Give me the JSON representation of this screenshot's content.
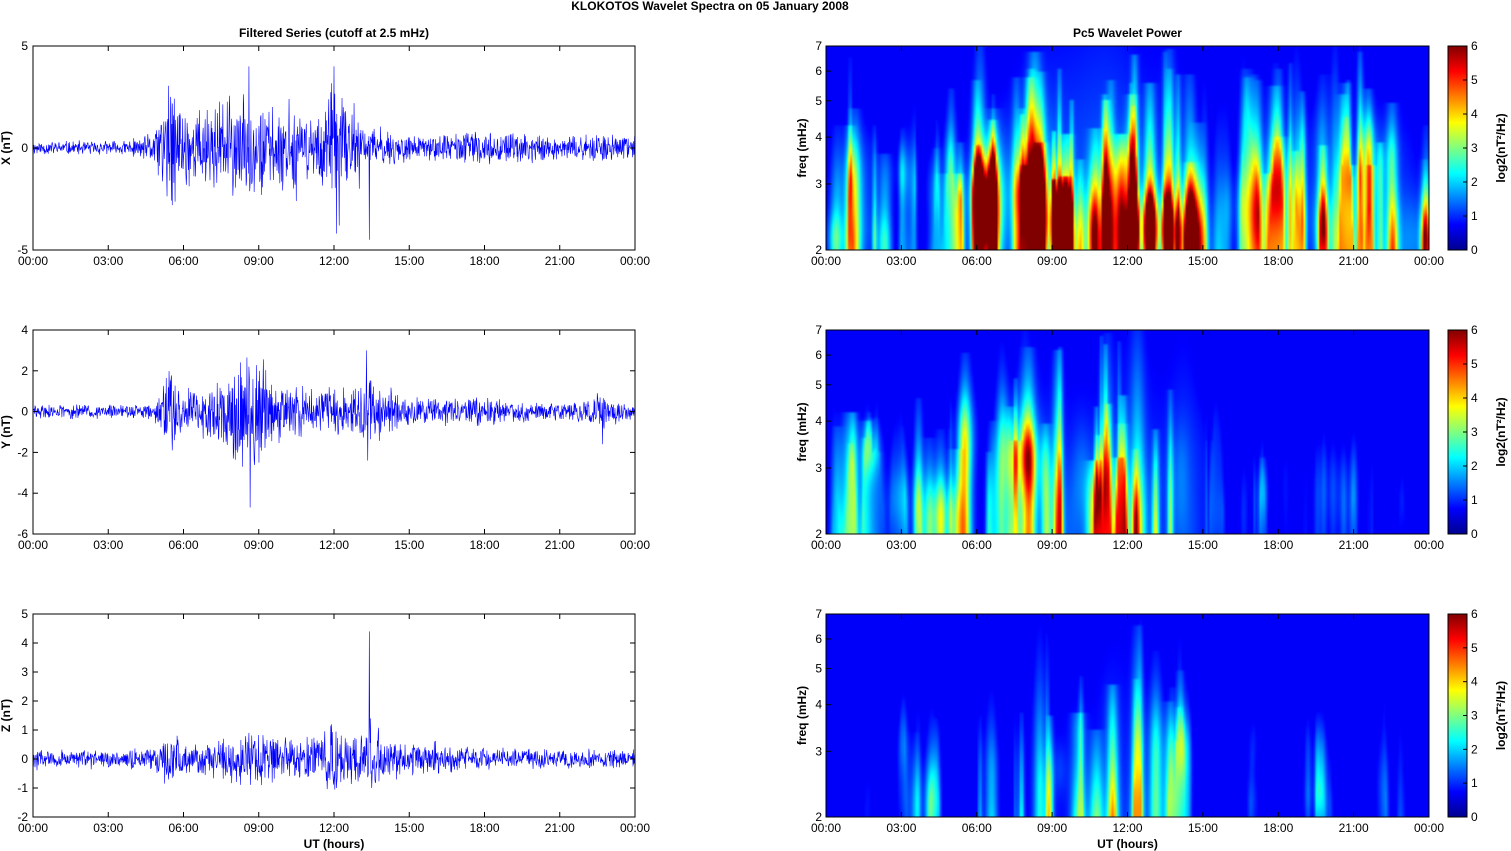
{
  "figure_title": "KLOKOTOS Wavelet Spectra on 05 January   2008",
  "colors": {
    "trace": "#0000ff",
    "axes": "#000000",
    "background": "#ffffff"
  },
  "chart_data": [
    {
      "type": "line",
      "id": "x",
      "title": "Filtered Series (cutoff at 2.5 mHz)",
      "xlabel": "",
      "ylabel": "X (nT)",
      "xlim": [
        "00:00",
        "24:00"
      ],
      "ylim": [
        -5,
        5
      ],
      "yticks": [
        -5,
        0,
        5
      ],
      "xticks": [
        "00:00",
        "03:00",
        "06:00",
        "09:00",
        "12:00",
        "15:00",
        "18:00",
        "21:00",
        "00:00"
      ],
      "series": [
        {
          "values": "high-rate filtered magnetometer trace, peaks near 4 nT at 08:30 and 12:00, minimum near -4.5 nT at 13:30"
        }
      ]
    },
    {
      "type": "line",
      "id": "y",
      "title": "",
      "xlabel": "",
      "ylabel": "Y (nT)",
      "xlim": [
        "00:00",
        "24:00"
      ],
      "ylim": [
        -6,
        4
      ],
      "yticks": [
        -6,
        -4,
        -2,
        0,
        2,
        4
      ],
      "xticks": [
        "00:00",
        "03:00",
        "06:00",
        "09:00",
        "12:00",
        "15:00",
        "18:00",
        "21:00",
        "00:00"
      ],
      "series": [
        {
          "values": "high-rate filtered trace, max near 3 nT at 13:20, min near -4.7 nT at 08:40"
        }
      ]
    },
    {
      "type": "line",
      "id": "z",
      "title": "",
      "xlabel": "UT (hours)",
      "ylabel": "Z (nT)",
      "xlim": [
        "00:00",
        "24:00"
      ],
      "ylim": [
        -2,
        5
      ],
      "yticks": [
        -2,
        -1,
        0,
        1,
        2,
        3,
        4,
        5
      ],
      "xticks": [
        "00:00",
        "03:00",
        "06:00",
        "09:00",
        "12:00",
        "15:00",
        "18:00",
        "21:00",
        "00:00"
      ],
      "series": [
        {
          "values": "high-rate filtered trace, spike near 4.4 nT at 13:20"
        }
      ]
    },
    {
      "type": "heatmap",
      "id": "wx",
      "title": "Pc5 Wavelet Power",
      "xlabel": "",
      "ylabel": "freq (mHz)",
      "xlim": [
        "00:00",
        "24:00"
      ],
      "ylim": [
        2,
        7
      ],
      "yscale": "log",
      "yticks": [
        2,
        3,
        4,
        5,
        6,
        7
      ],
      "xticks": [
        "00:00",
        "03:00",
        "06:00",
        "09:00",
        "12:00",
        "15:00",
        "18:00",
        "21:00",
        "00:00"
      ],
      "colorbar": {
        "label": "log2(nT²/Hz)",
        "range": [
          0,
          6
        ],
        "ticks": [
          0,
          1,
          2,
          3,
          4,
          5,
          6
        ],
        "colormap": "jet"
      }
    },
    {
      "type": "heatmap",
      "id": "wy",
      "title": "",
      "xlabel": "",
      "ylabel": "freq (mHz)",
      "xlim": [
        "00:00",
        "24:00"
      ],
      "ylim": [
        2,
        7
      ],
      "yscale": "log",
      "yticks": [
        2,
        3,
        4,
        5,
        6,
        7
      ],
      "xticks": [
        "00:00",
        "03:00",
        "06:00",
        "09:00",
        "12:00",
        "15:00",
        "18:00",
        "21:00",
        "00:00"
      ],
      "colorbar": {
        "label": "log2(nT²/Hz)",
        "range": [
          0,
          6
        ],
        "ticks": [
          0,
          1,
          2,
          3,
          4,
          5,
          6
        ],
        "colormap": "jet"
      }
    },
    {
      "type": "heatmap",
      "id": "wz",
      "title": "",
      "xlabel": "UT (hours)",
      "ylabel": "freq (mHz)",
      "xlim": [
        "00:00",
        "24:00"
      ],
      "ylim": [
        2,
        7
      ],
      "yscale": "log",
      "yticks": [
        2,
        3,
        4,
        5,
        6,
        7
      ],
      "xticks": [
        "00:00",
        "03:00",
        "06:00",
        "09:00",
        "12:00",
        "15:00",
        "18:00",
        "21:00",
        "00:00"
      ],
      "colorbar": {
        "label": "log2(nT²/Hz)",
        "range": [
          0,
          6
        ],
        "ticks": [
          0,
          1,
          2,
          3,
          4,
          5,
          6
        ],
        "colormap": "jet"
      }
    }
  ]
}
